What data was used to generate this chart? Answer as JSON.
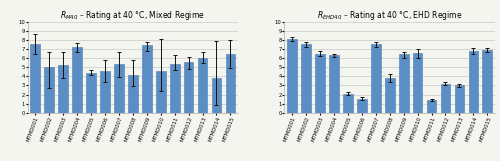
{
  "categories": [
    "MTMD001",
    "MTMD002",
    "MTMD003",
    "MTMD004",
    "MTMD005",
    "MTMD006",
    "MTMD007",
    "MTMD008",
    "MTMD009",
    "MTMD010",
    "MTMD011",
    "MTMD012",
    "MTMD013",
    "MTMD014",
    "MTMD015"
  ],
  "mixed_values": [
    7.5,
    5.0,
    5.2,
    7.2,
    4.4,
    4.6,
    5.3,
    4.1,
    7.4,
    4.6,
    5.4,
    5.6,
    6.0,
    3.8,
    6.5
  ],
  "mixed_err_low": [
    1.1,
    2.3,
    1.4,
    0.5,
    0.25,
    1.2,
    1.4,
    1.2,
    0.6,
    2.2,
    0.7,
    0.8,
    0.5,
    2.9,
    1.6
  ],
  "mixed_err_high": [
    1.1,
    1.7,
    1.5,
    0.5,
    0.3,
    1.2,
    1.4,
    1.7,
    0.4,
    3.5,
    0.9,
    0.5,
    0.7,
    4.1,
    1.5
  ],
  "ehd_values": [
    8.1,
    7.5,
    6.5,
    6.3,
    2.1,
    1.55,
    7.5,
    3.8,
    6.4,
    6.6,
    1.4,
    3.2,
    3.0,
    6.8,
    6.9
  ],
  "ehd_err_low": [
    0.2,
    0.3,
    0.3,
    0.15,
    0.15,
    0.15,
    0.25,
    0.45,
    0.35,
    0.6,
    0.1,
    0.2,
    0.2,
    0.35,
    0.25
  ],
  "ehd_err_high": [
    0.2,
    0.3,
    0.3,
    0.15,
    0.15,
    0.15,
    0.25,
    0.45,
    0.3,
    0.4,
    0.1,
    0.2,
    0.2,
    0.3,
    0.25
  ],
  "bar_color": "#5b8ec4",
  "bar_edge_color": "#4a7ab0",
  "error_color": "#111111",
  "title_left": "$R_{M40}$ – Rating at 40 °C, Mixed Regime",
  "title_right": "$R_{EHD40}$ – Rating at 40 °C, EHD Regime",
  "ylim": [
    0,
    10
  ],
  "yticks": [
    0,
    1,
    2,
    3,
    4,
    5,
    6,
    7,
    8,
    9,
    10
  ],
  "background_color": "#f5f5f0",
  "grid_color": "#c8c8c8",
  "title_fontsize": 5.5,
  "tick_fontsize": 3.8,
  "bar_width": 0.7
}
